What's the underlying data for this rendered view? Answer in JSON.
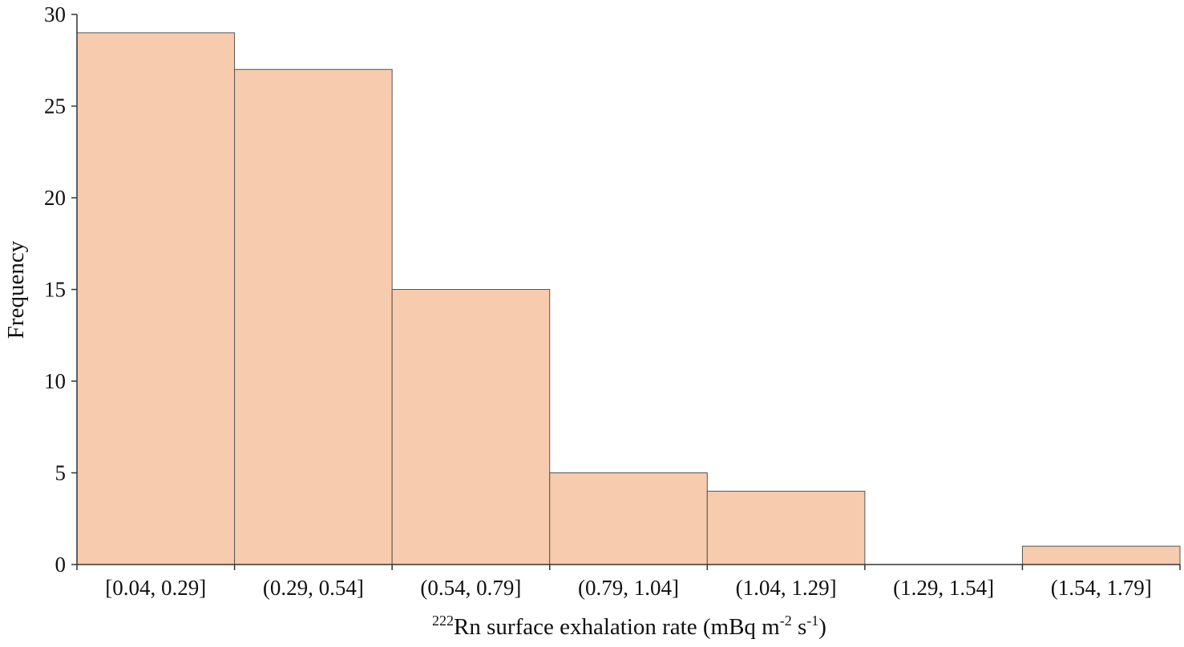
{
  "chart_data": {
    "type": "bar",
    "categories": [
      "[0.04, 0.29]",
      "(0.29, 0.54]",
      "(0.54, 0.79]",
      "(0.79, 1.04]",
      "(1.04, 1.29]",
      "(1.29, 1.54]",
      "(1.54, 1.79]"
    ],
    "series": [
      {
        "values": [
          29,
          27,
          15,
          5,
          4,
          0,
          1
        ]
      }
    ],
    "ylim": [
      0,
      30
    ],
    "yticks": [
      0,
      5,
      10,
      15,
      20,
      25,
      30
    ],
    "ylabel": "Frequency",
    "xlabel": {
      "superscript_prefix": "222",
      "main": "Rn surface exhalation rate (mBq m",
      "exp1": "-2",
      "mid": " s",
      "exp2": "-1",
      "end": ")"
    },
    "grid": false,
    "legend": "none",
    "bar_color": "#f7cbad"
  }
}
